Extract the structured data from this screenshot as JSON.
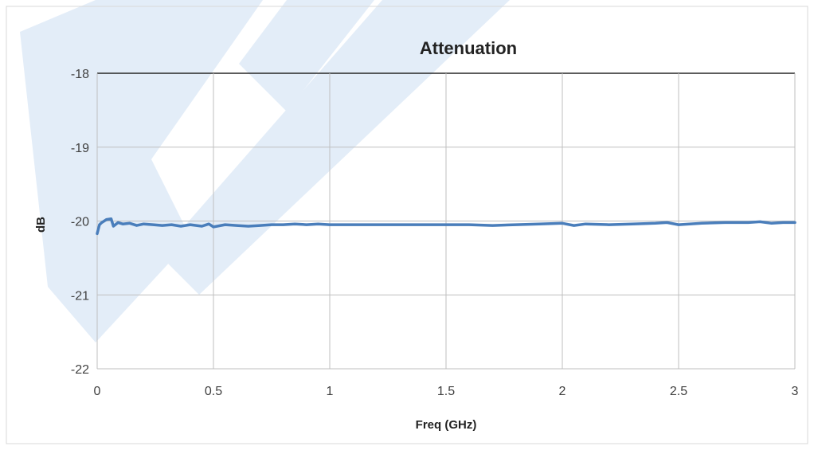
{
  "chart_data": {
    "type": "line",
    "title": "Attenuation",
    "xlabel": "Freq (GHz)",
    "ylabel": "dB",
    "xlim": [
      0,
      3
    ],
    "ylim": [
      -22,
      -18
    ],
    "x_ticks": [
      "0",
      "0.5",
      "1",
      "1.5",
      "2",
      "2.5",
      "3"
    ],
    "y_ticks": [
      "-18",
      "-19",
      "-20",
      "-21",
      "-22"
    ],
    "grid": true,
    "legend": "none",
    "colors": {
      "line": "#4a7ebb",
      "grid": "#bfbfbf",
      "watermark": "#e3edf8"
    },
    "series": [
      {
        "x": [
          0.0,
          0.01,
          0.02,
          0.04,
          0.06,
          0.07,
          0.09,
          0.11,
          0.14,
          0.17,
          0.2,
          0.24,
          0.28,
          0.32,
          0.36,
          0.4,
          0.45,
          0.48,
          0.5,
          0.55,
          0.6,
          0.65,
          0.7,
          0.75,
          0.8,
          0.85,
          0.9,
          0.95,
          1.0,
          1.1,
          1.2,
          1.3,
          1.4,
          1.5,
          1.6,
          1.7,
          1.8,
          1.9,
          2.0,
          2.05,
          2.1,
          2.2,
          2.3,
          2.4,
          2.45,
          2.5,
          2.6,
          2.7,
          2.8,
          2.85,
          2.9,
          2.95,
          3.0
        ],
        "y": [
          -20.17,
          -20.05,
          -20.02,
          -19.98,
          -19.97,
          -20.07,
          -20.02,
          -20.04,
          -20.03,
          -20.06,
          -20.04,
          -20.05,
          -20.06,
          -20.05,
          -20.07,
          -20.05,
          -20.07,
          -20.04,
          -20.08,
          -20.05,
          -20.06,
          -20.07,
          -20.06,
          -20.05,
          -20.05,
          -20.04,
          -20.05,
          -20.04,
          -20.05,
          -20.05,
          -20.05,
          -20.05,
          -20.05,
          -20.05,
          -20.05,
          -20.06,
          -20.05,
          -20.04,
          -20.03,
          -20.06,
          -20.04,
          -20.05,
          -20.04,
          -20.03,
          -20.02,
          -20.05,
          -20.03,
          -20.02,
          -20.02,
          -20.01,
          -20.03,
          -20.02,
          -20.02
        ]
      }
    ]
  }
}
